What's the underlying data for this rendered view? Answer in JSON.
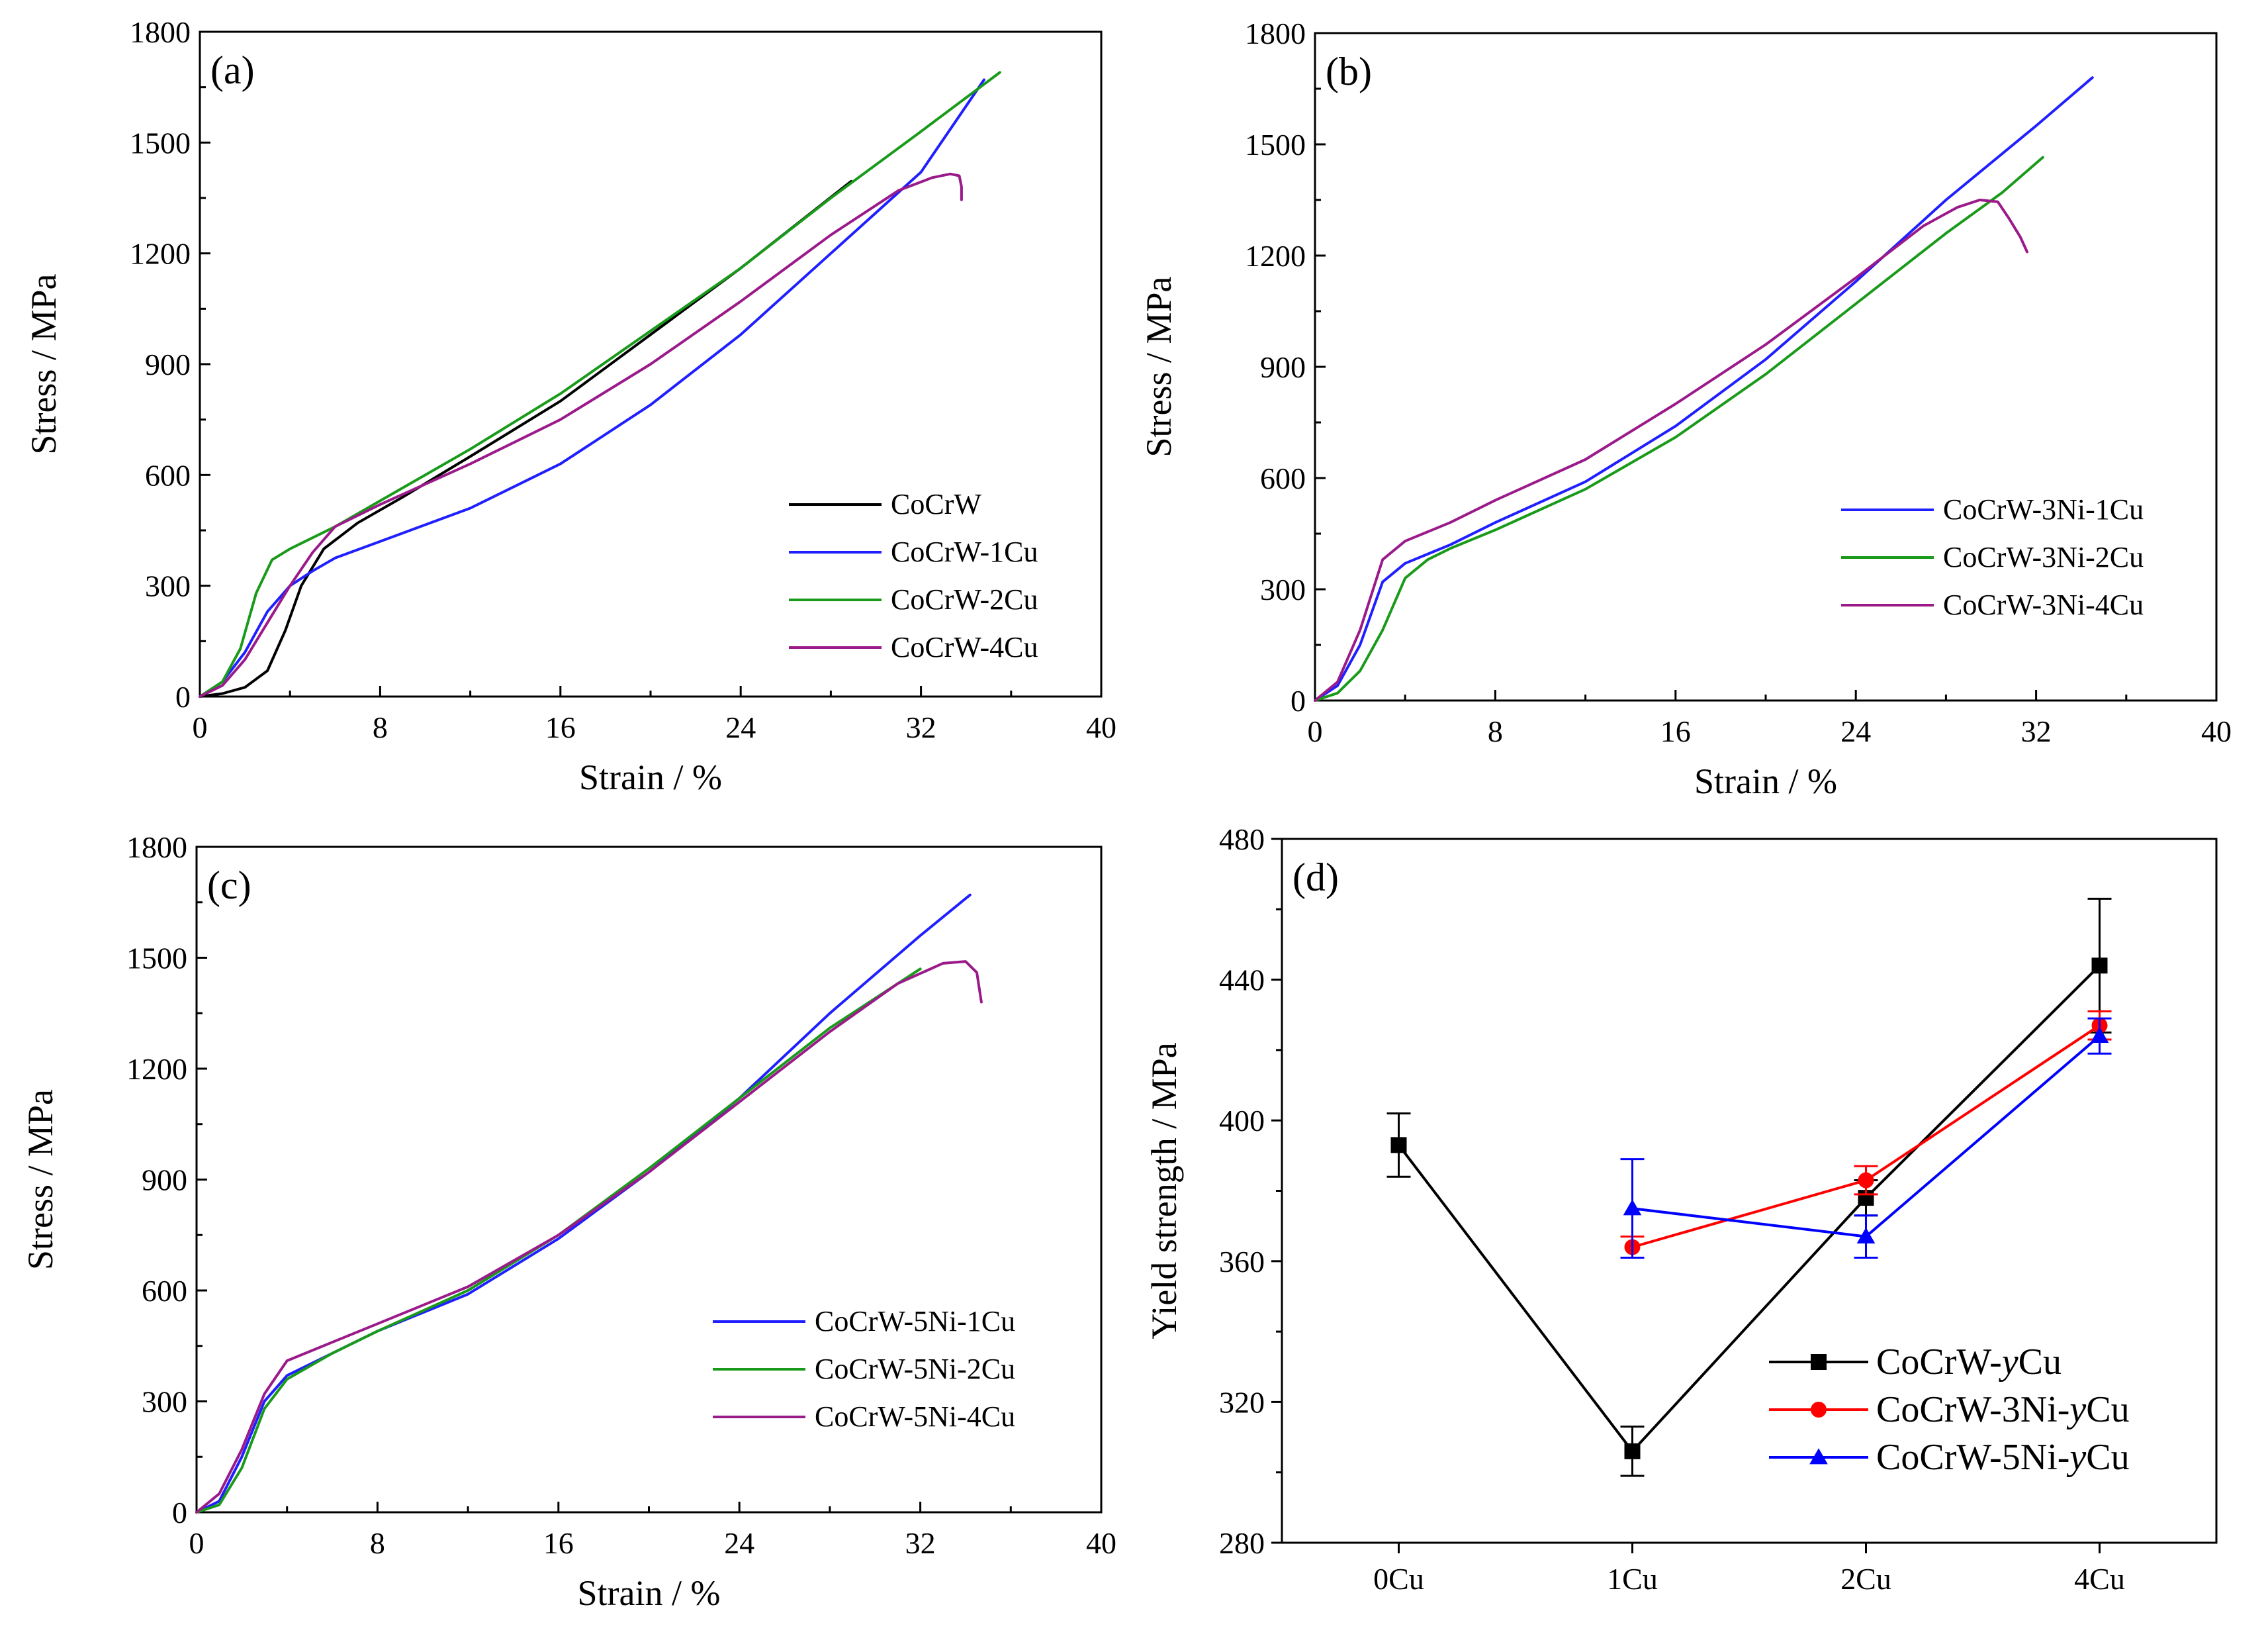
{
  "colors": {
    "black": "#000000",
    "blue": "#1f1fff",
    "green": "#1a9a1a",
    "purple": "#9a1a8a",
    "red": "#ff0000",
    "blueD": "#0000ff"
  },
  "chart_data": [
    {
      "id": "a",
      "type": "line",
      "panel_label": "(a)",
      "xlabel": "Strain / %",
      "ylabel": "Stress / MPa",
      "xlim": [
        0,
        40
      ],
      "ylim": [
        0,
        1800
      ],
      "xticks": [
        0,
        8,
        16,
        24,
        32,
        40
      ],
      "yticks": [
        0,
        300,
        600,
        900,
        1200,
        1500,
        1800
      ],
      "legend_position": "bottom-right",
      "series": [
        {
          "name": "CoCrW",
          "color": "#000000",
          "points": [
            [
              0,
              0
            ],
            [
              1,
              8
            ],
            [
              2,
              25
            ],
            [
              3,
              70
            ],
            [
              3.8,
              180
            ],
            [
              4.5,
              300
            ],
            [
              5.5,
              400
            ],
            [
              7,
              470
            ],
            [
              9,
              540
            ],
            [
              12,
              650
            ],
            [
              16,
              800
            ],
            [
              20,
              980
            ],
            [
              24,
              1160
            ],
            [
              28.9,
              1395
            ]
          ]
        },
        {
          "name": "CoCrW-1Cu",
          "color": "#1f1fff",
          "points": [
            [
              0,
              0
            ],
            [
              1,
              40
            ],
            [
              2,
              120
            ],
            [
              3,
              230
            ],
            [
              4,
              300
            ],
            [
              5,
              340
            ],
            [
              6,
              375
            ],
            [
              8,
              420
            ],
            [
              12,
              510
            ],
            [
              16,
              630
            ],
            [
              20,
              790
            ],
            [
              24,
              980
            ],
            [
              28,
              1200
            ],
            [
              32,
              1420
            ],
            [
              34.8,
              1670
            ]
          ]
        },
        {
          "name": "CoCrW-2Cu",
          "color": "#1a9a1a",
          "points": [
            [
              0,
              0
            ],
            [
              1,
              40
            ],
            [
              1.8,
              130
            ],
            [
              2.5,
              280
            ],
            [
              3.2,
              370
            ],
            [
              4,
              400
            ],
            [
              6,
              460
            ],
            [
              8,
              530
            ],
            [
              12,
              670
            ],
            [
              16,
              820
            ],
            [
              20,
              990
            ],
            [
              24,
              1160
            ],
            [
              28,
              1350
            ],
            [
              32,
              1530
            ],
            [
              35.5,
              1690
            ]
          ]
        },
        {
          "name": "CoCrW-4Cu",
          "color": "#9a1a8a",
          "points": [
            [
              0,
              0
            ],
            [
              1,
              30
            ],
            [
              2,
              100
            ],
            [
              3,
              200
            ],
            [
              4,
              300
            ],
            [
              5,
              390
            ],
            [
              6,
              460
            ],
            [
              8,
              520
            ],
            [
              12,
              630
            ],
            [
              16,
              750
            ],
            [
              20,
              900
            ],
            [
              24,
              1070
            ],
            [
              28,
              1250
            ],
            [
              31,
              1370
            ],
            [
              32.5,
              1405
            ],
            [
              33.3,
              1415
            ],
            [
              33.7,
              1410
            ],
            [
              33.8,
              1380
            ],
            [
              33.8,
              1345
            ]
          ]
        }
      ]
    },
    {
      "id": "b",
      "type": "line",
      "panel_label": "(b)",
      "xlabel": "Strain / %",
      "ylabel": "Stress / MPa",
      "xlim": [
        0,
        40
      ],
      "ylim": [
        0,
        1800
      ],
      "xticks": [
        0,
        8,
        16,
        24,
        32,
        40
      ],
      "yticks": [
        0,
        300,
        600,
        900,
        1200,
        1500,
        1800
      ],
      "legend_position": "bottom-right",
      "series": [
        {
          "name": "CoCrW-3Ni-1Cu",
          "color": "#1f1fff",
          "points": [
            [
              0,
              0
            ],
            [
              1,
              40
            ],
            [
              2,
              150
            ],
            [
              3,
              320
            ],
            [
              4,
              370
            ],
            [
              6,
              420
            ],
            [
              8,
              480
            ],
            [
              12,
              590
            ],
            [
              16,
              740
            ],
            [
              20,
              920
            ],
            [
              24,
              1130
            ],
            [
              28,
              1350
            ],
            [
              32,
              1550
            ],
            [
              34.5,
              1680
            ]
          ]
        },
        {
          "name": "CoCrW-3Ni-2Cu",
          "color": "#1a9a1a",
          "points": [
            [
              0,
              0
            ],
            [
              1,
              20
            ],
            [
              2,
              80
            ],
            [
              3,
              190
            ],
            [
              4,
              330
            ],
            [
              5,
              380
            ],
            [
              6,
              410
            ],
            [
              8,
              460
            ],
            [
              12,
              570
            ],
            [
              16,
              710
            ],
            [
              20,
              880
            ],
            [
              24,
              1070
            ],
            [
              28,
              1260
            ],
            [
              30.5,
              1370
            ],
            [
              32.3,
              1465
            ]
          ]
        },
        {
          "name": "CoCrW-3Ni-4Cu",
          "color": "#9a1a8a",
          "points": [
            [
              0,
              0
            ],
            [
              1,
              50
            ],
            [
              2,
              190
            ],
            [
              3,
              380
            ],
            [
              4,
              430
            ],
            [
              6,
              480
            ],
            [
              8,
              540
            ],
            [
              12,
              650
            ],
            [
              16,
              800
            ],
            [
              20,
              960
            ],
            [
              24,
              1140
            ],
            [
              27,
              1280
            ],
            [
              28.5,
              1330
            ],
            [
              29.5,
              1350
            ],
            [
              30.3,
              1345
            ],
            [
              30.8,
              1300
            ],
            [
              31.3,
              1250
            ],
            [
              31.6,
              1210
            ]
          ]
        }
      ]
    },
    {
      "id": "c",
      "type": "line",
      "panel_label": "(c)",
      "xlabel": "Strain / %",
      "ylabel": "Stress / MPa",
      "xlim": [
        0,
        40
      ],
      "ylim": [
        0,
        1800
      ],
      "xticks": [
        0,
        8,
        16,
        24,
        32,
        40
      ],
      "yticks": [
        0,
        300,
        600,
        900,
        1200,
        1500,
        1800
      ],
      "legend_position": "bottom-right",
      "series": [
        {
          "name": "CoCrW-5Ni-1Cu",
          "color": "#1f1fff",
          "points": [
            [
              0,
              0
            ],
            [
              1,
              30
            ],
            [
              2,
              150
            ],
            [
              3,
              300
            ],
            [
              4,
              370
            ],
            [
              6,
              430
            ],
            [
              8,
              490
            ],
            [
              12,
              590
            ],
            [
              16,
              740
            ],
            [
              20,
              920
            ],
            [
              24,
              1120
            ],
            [
              28,
              1350
            ],
            [
              32,
              1560
            ],
            [
              34.2,
              1670
            ]
          ]
        },
        {
          "name": "CoCrW-5Ni-2Cu",
          "color": "#1a9a1a",
          "points": [
            [
              0,
              0
            ],
            [
              1,
              20
            ],
            [
              2,
              120
            ],
            [
              3,
              280
            ],
            [
              4,
              360
            ],
            [
              6,
              430
            ],
            [
              8,
              490
            ],
            [
              12,
              600
            ],
            [
              16,
              750
            ],
            [
              20,
              930
            ],
            [
              24,
              1120
            ],
            [
              28,
              1310
            ],
            [
              31,
              1430
            ],
            [
              32,
              1470
            ]
          ]
        },
        {
          "name": "CoCrW-5Ni-4Cu",
          "color": "#9a1a8a",
          "points": [
            [
              0,
              0
            ],
            [
              1,
              50
            ],
            [
              2,
              170
            ],
            [
              3,
              320
            ],
            [
              4,
              410
            ],
            [
              6,
              460
            ],
            [
              8,
              510
            ],
            [
              12,
              610
            ],
            [
              16,
              750
            ],
            [
              20,
              920
            ],
            [
              24,
              1110
            ],
            [
              28,
              1300
            ],
            [
              31,
              1430
            ],
            [
              33,
              1485
            ],
            [
              34,
              1490
            ],
            [
              34.5,
              1460
            ],
            [
              34.7,
              1380
            ]
          ]
        }
      ]
    },
    {
      "id": "d",
      "type": "line",
      "panel_label": "(d)",
      "xlabel": "",
      "ylabel": "Yield strength / MPa",
      "categories": [
        "0Cu",
        "1Cu",
        "2Cu",
        "4Cu"
      ],
      "ylim": [
        280,
        480
      ],
      "yticks": [
        280,
        320,
        360,
        400,
        440,
        480
      ],
      "legend_position": "bottom-right",
      "series": [
        {
          "name": "CoCrW-yCu",
          "legend_prefix": "CoCrW-",
          "legend_italic": "y",
          "legend_suffix": "Cu",
          "color": "#000000",
          "marker": "square",
          "values": [
            393,
            306,
            378,
            444
          ],
          "errors": [
            9,
            7,
            5,
            19
          ]
        },
        {
          "name": "CoCrW-3Ni-yCu",
          "legend_prefix": "CoCrW-3Ni-",
          "legend_italic": "y",
          "legend_suffix": "Cu",
          "color": "#ff0000",
          "marker": "circle",
          "values": [
            null,
            364,
            383,
            427
          ],
          "errors": [
            null,
            3,
            4,
            4
          ]
        },
        {
          "name": "CoCrW-5Ni-yCu",
          "legend_prefix": "CoCrW-5Ni-",
          "legend_italic": "y",
          "legend_suffix": "Cu",
          "color": "#0000ff",
          "marker": "triangle",
          "values": [
            null,
            375,
            367,
            424
          ],
          "errors": [
            null,
            14,
            6,
            5
          ]
        }
      ]
    }
  ]
}
